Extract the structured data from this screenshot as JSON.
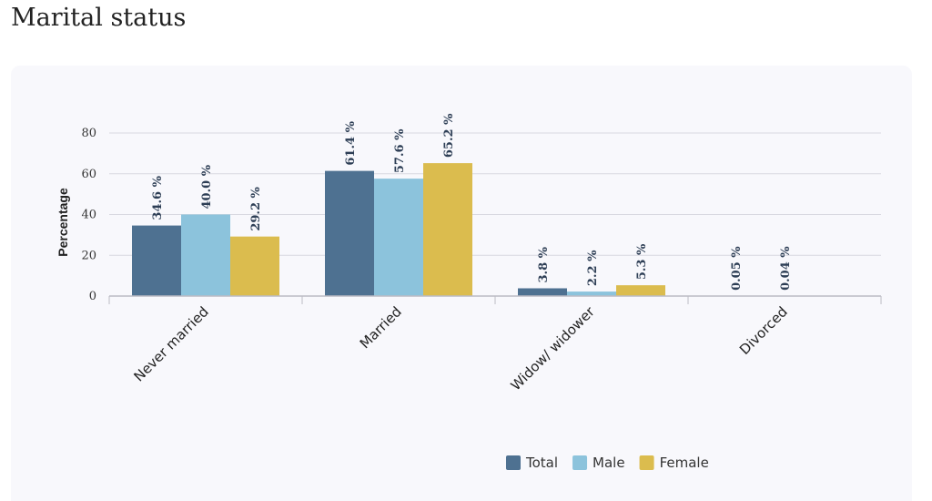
{
  "page": {
    "title": "Marital status"
  },
  "chart_data": {
    "type": "bar",
    "categories": [
      "Never married",
      "Married",
      "Widow/ widower",
      "Divorced"
    ],
    "series": [
      {
        "name": "Total",
        "values": [
          34.6,
          61.4,
          3.8,
          0.05
        ],
        "labels": [
          "34.6 %",
          "61.4 %",
          "3.8 %",
          "0.05 %"
        ]
      },
      {
        "name": "Male",
        "values": [
          40.0,
          57.6,
          2.2,
          0.04
        ],
        "labels": [
          "40.0 %",
          "57.6 %",
          "2.2 %",
          "0.04 %"
        ]
      },
      {
        "name": "Female",
        "values": [
          29.2,
          65.2,
          5.3,
          null
        ],
        "labels": [
          "29.2 %",
          "65.2 %",
          "5.3 %",
          ""
        ]
      }
    ],
    "colors": [
      "#4e7191",
      "#8cc3dc",
      "#dbbc4e"
    ],
    "ylabel": "Percentage",
    "xlabel": "",
    "ylim": [
      0,
      80
    ],
    "yticks": [
      0,
      20,
      40,
      60,
      80
    ],
    "grid": true,
    "legend_position": "bottom-right"
  }
}
